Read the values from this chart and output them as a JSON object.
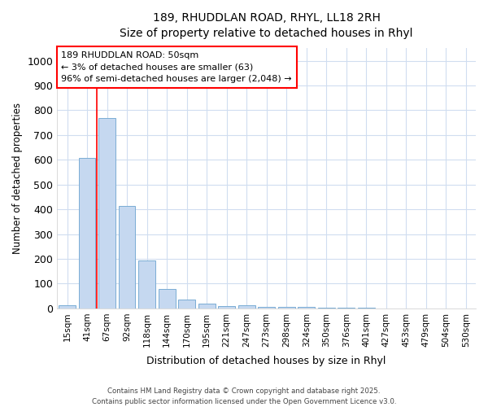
{
  "title_line1": "189, RHUDDLAN ROAD, RHYL, LL18 2RH",
  "title_line2": "Size of property relative to detached houses in Rhyl",
  "xlabel": "Distribution of detached houses by size in Rhyl",
  "ylabel": "Number of detached properties",
  "categories": [
    "15sqm",
    "41sqm",
    "67sqm",
    "92sqm",
    "118sqm",
    "144sqm",
    "170sqm",
    "195sqm",
    "221sqm",
    "247sqm",
    "273sqm",
    "298sqm",
    "324sqm",
    "350sqm",
    "376sqm",
    "401sqm",
    "427sqm",
    "453sqm",
    "479sqm",
    "504sqm",
    "530sqm"
  ],
  "values": [
    13,
    607,
    770,
    413,
    192,
    78,
    37,
    18,
    10,
    12,
    7,
    5,
    5,
    4,
    3,
    2,
    1,
    1,
    1,
    1,
    1
  ],
  "bar_color": "#c5d8f0",
  "bar_edge_color": "#7aadd4",
  "background_color": "#ffffff",
  "grid_color": "#d0ddf0",
  "ylim": [
    0,
    1050
  ],
  "yticks": [
    0,
    100,
    200,
    300,
    400,
    500,
    600,
    700,
    800,
    900,
    1000
  ],
  "red_line_index": 1.5,
  "annotation_text": "189 RHUDDLAN ROAD: 50sqm\n← 3% of detached houses are smaller (63)\n96% of semi-detached houses are larger (2,048) →",
  "footnote_line1": "Contains HM Land Registry data © Crown copyright and database right 2025.",
  "footnote_line2": "Contains public sector information licensed under the Open Government Licence v3.0."
}
